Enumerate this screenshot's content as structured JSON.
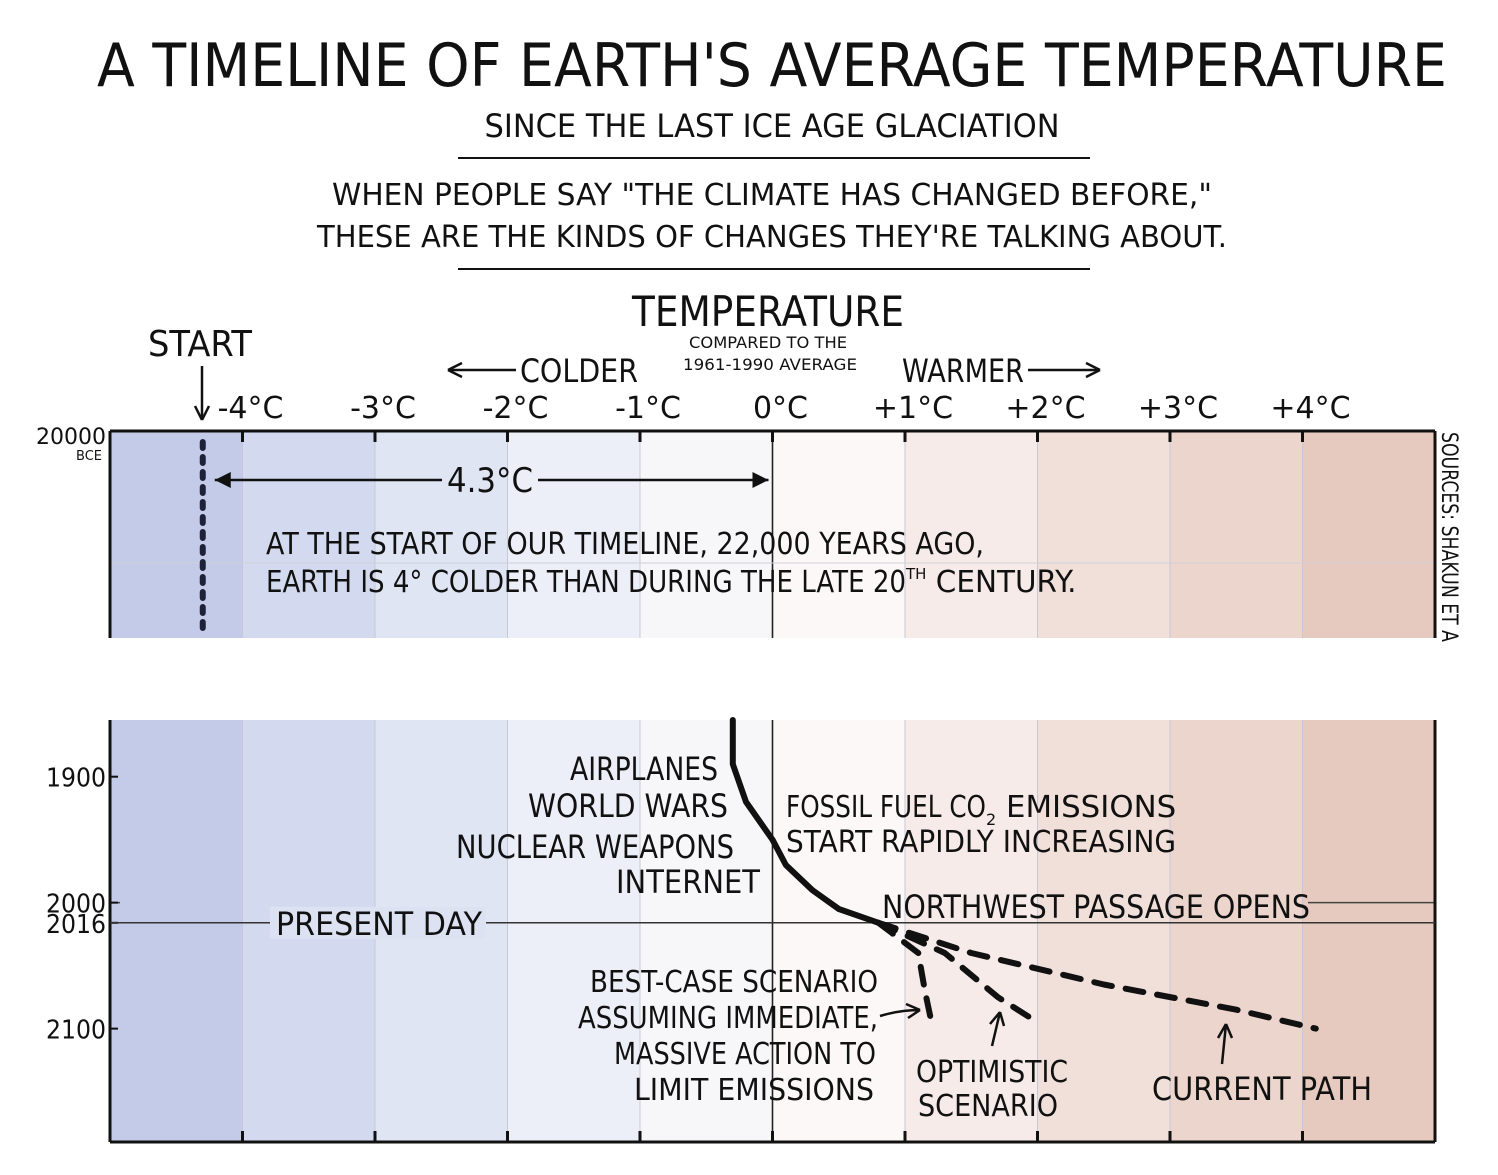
{
  "chart_data": {
    "type": "line",
    "title": "A TIMELINE OF EARTH'S AVERAGE TEMPERATURE",
    "subtitle": "SINCE THE LAST ICE AGE GLACIATION",
    "intro": [
      "WHEN PEOPLE SAY \"THE CLIMATE HAS CHANGED BEFORE,\"",
      "THESE ARE THE KINDS OF CHANGES THEY'RE TALKING ABOUT."
    ],
    "xlabel": "TEMPERATURE",
    "xlabel_note": [
      "COMPARED TO THE",
      "1961-1990 AVERAGE"
    ],
    "colder_label": "COLDER",
    "warmer_label": "WARMER",
    "xlim": [
      -5.0,
      5.0
    ],
    "x_ticks": [
      {
        "value": -4,
        "label": "-4°C"
      },
      {
        "value": -3,
        "label": "-3°C"
      },
      {
        "value": -2,
        "label": "-2°C"
      },
      {
        "value": -1,
        "label": "-1°C"
      },
      {
        "value": 0,
        "label": "0°C"
      },
      {
        "value": 1,
        "label": "+1°C"
      },
      {
        "value": 2,
        "label": "+2°C"
      },
      {
        "value": 3,
        "label": "+3°C"
      },
      {
        "value": 4,
        "label": "+4°C"
      }
    ],
    "band_colors": [
      "#c3cbe8",
      "#d3daef",
      "#e0e5f4",
      "#eceff8",
      "#f7f7f9",
      "#fbf8f7",
      "#f6ebe8",
      "#f1e0da",
      "#ecd5cc",
      "#e7cabf"
    ],
    "top_panel": {
      "y_tick": {
        "value": -20000,
        "label": "20000",
        "sublabel": "BCE"
      },
      "start_label": "START",
      "start_series": {
        "x": [
          -4.3,
          -4.3
        ],
        "y": [
          -20000,
          -19800
        ]
      },
      "span_label": "4.3°C",
      "span": [
        -4.3,
        0.0
      ],
      "notes": [
        "AT THE START OF OUR TIMELINE, 22,000 YEARS AGO,",
        "EARTH IS 4° COLDER THAN DURING THE LATE 20",
        "TH",
        " CENTURY."
      ]
    },
    "bottom_panel": {
      "ylim": [
        1855,
        2190
      ],
      "y_ticks": [
        {
          "value": 1900,
          "label": "1900"
        },
        {
          "value": 2000,
          "label": "2000"
        },
        {
          "value": 2016,
          "label": "2016"
        },
        {
          "value": 2100,
          "label": "2100"
        }
      ],
      "present_day_label": "PRESENT DAY",
      "series": [
        {
          "x": [
            -0.3,
            -0.3,
            -0.2,
            0.0,
            0.1,
            0.3,
            0.5,
            0.8
          ],
          "y": [
            1855,
            1890,
            1920,
            1950,
            1970,
            1990,
            2005,
            2016
          ],
          "style": "solid"
        },
        {
          "x": [
            0.8,
            1.1,
            1.15,
            1.2
          ],
          "y": [
            2016,
            2040,
            2070,
            2095
          ],
          "style": "dashed"
        },
        {
          "x": [
            0.8,
            1.3,
            1.7,
            2.0
          ],
          "y": [
            2016,
            2040,
            2075,
            2095
          ],
          "style": "dashed"
        },
        {
          "x": [
            0.8,
            1.5,
            2.5,
            3.5,
            4.1
          ],
          "y": [
            2016,
            2040,
            2065,
            2085,
            2100
          ],
          "style": "dashed"
        }
      ],
      "annotations": {
        "events": [
          "AIRPLANES",
          "WORLD WARS",
          "NUCLEAR  WEAPONS",
          "INTERNET"
        ],
        "fossil": [
          "FOSSIL FUEL CO",
          "2",
          " EMISSIONS",
          "START RAPIDLY INCREASING"
        ],
        "northwest": "NORTHWEST PASSAGE OPENS",
        "best_case": [
          "BEST-CASE SCENARIO",
          "ASSUMING IMMEDIATE,",
          "MASSIVE ACTION TO",
          "LIMIT EMISSIONS"
        ],
        "optimistic": [
          "OPTIMISTIC",
          "SCENARIO"
        ],
        "current": "CURRENT PATH"
      }
    },
    "sources": "SOURCES: SHAKUN ET A"
  }
}
